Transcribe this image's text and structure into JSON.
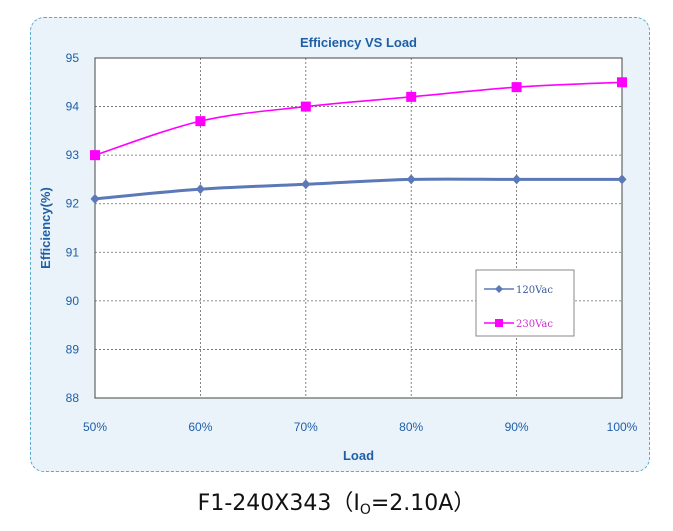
{
  "chart_data": {
    "type": "line",
    "title": "Efficiency VS  Load",
    "xlabel": "Load",
    "ylabel": "Efficiency(%)",
    "categories": [
      "50%",
      "60%",
      "70%",
      "80%",
      "90%",
      "100%"
    ],
    "ylim": [
      88,
      95
    ],
    "yticks": [
      "88",
      "89",
      "90",
      "91",
      "92",
      "93",
      "94",
      "95"
    ],
    "grid": true,
    "legend_position": "right",
    "series": [
      {
        "name": "120Vac",
        "values": [
          92.1,
          92.3,
          92.4,
          92.5,
          92.5,
          92.5
        ],
        "color": "#5b78b8",
        "marker": "diamond"
      },
      {
        "name": "230Vac",
        "values": [
          93.0,
          93.7,
          94.0,
          94.2,
          94.4,
          94.5
        ],
        "color": "#ff00ff",
        "marker": "square"
      }
    ]
  },
  "caption": {
    "prefix": "F1-240X343（I",
    "subscript": "O",
    "suffix": "=2.10A）"
  },
  "colors": {
    "plot_background": "#ffffff",
    "panel_background": "#eaf3f9",
    "panel_border": "#5aa9cf",
    "axis_text": "#1f5fa8"
  }
}
